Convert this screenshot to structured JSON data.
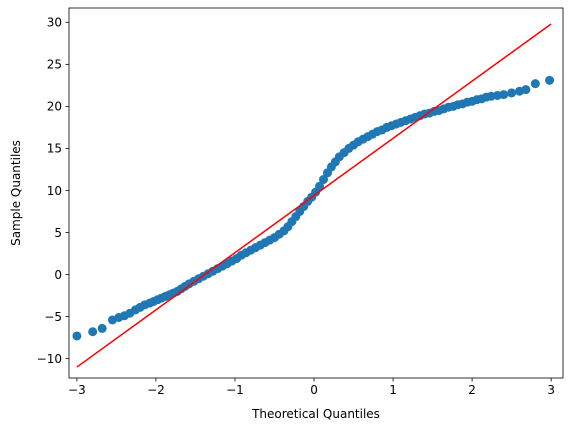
{
  "chart_data": {
    "type": "scatter",
    "title": "",
    "xlabel": "Theoretical Quantiles",
    "ylabel": "Sample Quantiles",
    "xlim": [
      -3.1,
      3.15
    ],
    "ylim": [
      -12.3,
      31.7
    ],
    "xticks": [
      -3,
      -2,
      -1,
      0,
      1,
      2,
      3
    ],
    "yticks": [
      -10,
      -5,
      0,
      5,
      10,
      15,
      20,
      25,
      30
    ],
    "grid": false,
    "points": [
      [
        -3.0,
        -7.3
      ],
      [
        -2.8,
        -6.8
      ],
      [
        -2.68,
        -6.4
      ],
      [
        -2.55,
        -5.4
      ],
      [
        -2.47,
        -5.1
      ],
      [
        -2.4,
        -4.9
      ],
      [
        -2.33,
        -4.6
      ],
      [
        -2.26,
        -4.2
      ],
      [
        -2.2,
        -3.9
      ],
      [
        -2.14,
        -3.6
      ],
      [
        -2.08,
        -3.4
      ],
      [
        -2.03,
        -3.2
      ],
      [
        -1.98,
        -3.0
      ],
      [
        -1.93,
        -2.8
      ],
      [
        -1.88,
        -2.6
      ],
      [
        -1.83,
        -2.4
      ],
      [
        -1.78,
        -2.2
      ],
      [
        -1.73,
        -2.0
      ],
      [
        -1.68,
        -1.7
      ],
      [
        -1.63,
        -1.4
      ],
      [
        -1.58,
        -1.1
      ],
      [
        -1.52,
        -0.8
      ],
      [
        -1.46,
        -0.5
      ],
      [
        -1.4,
        -0.2
      ],
      [
        -1.34,
        0.1
      ],
      [
        -1.28,
        0.4
      ],
      [
        -1.22,
        0.7
      ],
      [
        -1.16,
        1.0
      ],
      [
        -1.1,
        1.3
      ],
      [
        -1.04,
        1.6
      ],
      [
        -0.98,
        1.9
      ],
      [
        -0.92,
        2.3
      ],
      [
        -0.86,
        2.6
      ],
      [
        -0.8,
        2.9
      ],
      [
        -0.74,
        3.2
      ],
      [
        -0.68,
        3.5
      ],
      [
        -0.62,
        3.8
      ],
      [
        -0.56,
        4.1
      ],
      [
        -0.5,
        4.4
      ],
      [
        -0.44,
        4.8
      ],
      [
        -0.38,
        5.2
      ],
      [
        -0.33,
        5.7
      ],
      [
        -0.28,
        6.3
      ],
      [
        -0.23,
        6.9
      ],
      [
        -0.18,
        7.5
      ],
      [
        -0.13,
        8.1
      ],
      [
        -0.08,
        8.7
      ],
      [
        -0.03,
        9.2
      ],
      [
        0.02,
        9.8
      ],
      [
        0.07,
        10.5
      ],
      [
        0.12,
        11.3
      ],
      [
        0.17,
        12.1
      ],
      [
        0.22,
        12.8
      ],
      [
        0.27,
        13.4
      ],
      [
        0.32,
        14.0
      ],
      [
        0.38,
        14.5
      ],
      [
        0.44,
        15.0
      ],
      [
        0.5,
        15.4
      ],
      [
        0.56,
        15.8
      ],
      [
        0.62,
        16.1
      ],
      [
        0.68,
        16.4
      ],
      [
        0.74,
        16.7
      ],
      [
        0.8,
        17.0
      ],
      [
        0.86,
        17.2
      ],
      [
        0.92,
        17.5
      ],
      [
        0.98,
        17.7
      ],
      [
        1.04,
        17.9
      ],
      [
        1.1,
        18.1
      ],
      [
        1.16,
        18.3
      ],
      [
        1.22,
        18.5
      ],
      [
        1.28,
        18.7
      ],
      [
        1.34,
        18.9
      ],
      [
        1.4,
        19.1
      ],
      [
        1.46,
        19.2
      ],
      [
        1.52,
        19.4
      ],
      [
        1.58,
        19.5
      ],
      [
        1.64,
        19.7
      ],
      [
        1.7,
        19.9
      ],
      [
        1.76,
        20.0
      ],
      [
        1.82,
        20.2
      ],
      [
        1.88,
        20.3
      ],
      [
        1.94,
        20.5
      ],
      [
        2.0,
        20.6
      ],
      [
        2.06,
        20.8
      ],
      [
        2.12,
        20.9
      ],
      [
        2.18,
        21.1
      ],
      [
        2.24,
        21.2
      ],
      [
        2.32,
        21.3
      ],
      [
        2.4,
        21.4
      ],
      [
        2.5,
        21.6
      ],
      [
        2.6,
        21.8
      ],
      [
        2.68,
        22.0
      ],
      [
        2.8,
        22.7
      ],
      [
        2.98,
        23.1
      ]
    ],
    "reference_line": {
      "x": [
        -3.0,
        3.0
      ],
      "y": [
        -11.0,
        29.8
      ]
    },
    "colors": {
      "points": "#1f77b4",
      "line": "#ff0000",
      "axes": "#000000"
    }
  }
}
